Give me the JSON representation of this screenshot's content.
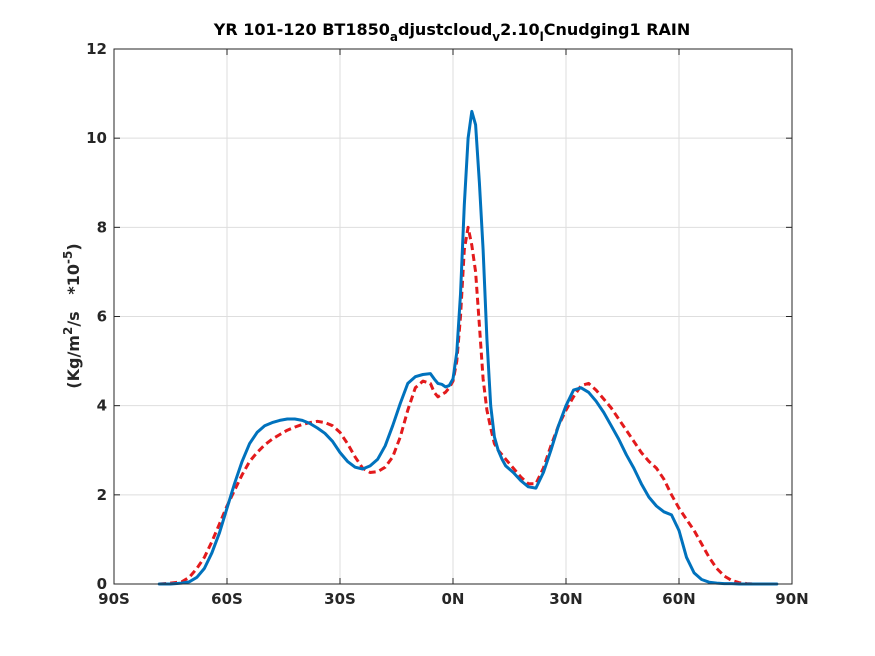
{
  "chart_data": {
    "type": "line",
    "title": {
      "parts": [
        "YR 101-120 BT1850",
        "a",
        "djustcloud",
        "v",
        "2.10",
        "l",
        "Cnudging1 RAIN"
      ]
    },
    "ylabel": {
      "parts": [
        "(Kg/m",
        "2",
        "/s   *10",
        "-5",
        ")"
      ]
    },
    "xlim": [
      -90,
      90
    ],
    "ylim": [
      0,
      12
    ],
    "xticks": [
      -90,
      -60,
      -30,
      0,
      30,
      60,
      90
    ],
    "xtick_labels": [
      "90S",
      "60S",
      "30S",
      "0N",
      "30N",
      "60N",
      "90N"
    ],
    "yticks": [
      0,
      2,
      4,
      6,
      8,
      10,
      12
    ],
    "ytick_labels": [
      "0",
      "2",
      "4",
      "6",
      "8",
      "10",
      "12"
    ],
    "grid": true,
    "series": [
      {
        "color": "#0072BD",
        "style": "solid",
        "x": [
          -78,
          -75,
          -72,
          -70,
          -68,
          -66,
          -64,
          -62,
          -60,
          -58,
          -56,
          -54,
          -52,
          -50,
          -48,
          -46,
          -44,
          -42,
          -40,
          -38,
          -36,
          -34,
          -32,
          -30,
          -28,
          -26,
          -24,
          -22,
          -20,
          -18,
          -16,
          -14,
          -12,
          -10,
          -8,
          -6,
          -5,
          -4,
          -3,
          -2,
          -1,
          0,
          1,
          2,
          3,
          4,
          5,
          6,
          7,
          8,
          9,
          10,
          11,
          12,
          13,
          14,
          16,
          18,
          20,
          22,
          24,
          26,
          28,
          30,
          32,
          34,
          36,
          38,
          40,
          42,
          44,
          46,
          48,
          50,
          52,
          54,
          56,
          58,
          60,
          62,
          64,
          66,
          68,
          70,
          72,
          74,
          76,
          78,
          80,
          82,
          84,
          86
        ],
        "y": [
          0,
          0,
          0.02,
          0.05,
          0.15,
          0.35,
          0.7,
          1.15,
          1.7,
          2.25,
          2.75,
          3.15,
          3.4,
          3.55,
          3.62,
          3.67,
          3.7,
          3.7,
          3.67,
          3.6,
          3.5,
          3.38,
          3.2,
          2.95,
          2.75,
          2.62,
          2.58,
          2.65,
          2.8,
          3.1,
          3.55,
          4.05,
          4.5,
          4.65,
          4.7,
          4.72,
          4.6,
          4.5,
          4.48,
          4.42,
          4.45,
          4.6,
          5.2,
          6.5,
          8.5,
          10.0,
          10.6,
          10.3,
          9.0,
          7.5,
          5.5,
          4.0,
          3.3,
          3.0,
          2.8,
          2.65,
          2.5,
          2.32,
          2.18,
          2.15,
          2.5,
          3.0,
          3.55,
          4.0,
          4.35,
          4.4,
          4.3,
          4.1,
          3.85,
          3.55,
          3.25,
          2.9,
          2.6,
          2.25,
          1.95,
          1.75,
          1.62,
          1.55,
          1.2,
          0.6,
          0.25,
          0.1,
          0.04,
          0.02,
          0.01,
          0.01,
          0,
          0,
          0,
          0,
          0,
          0
        ]
      },
      {
        "color": "#E31A1C",
        "style": "dashed",
        "x": [
          -78,
          -75,
          -72,
          -70,
          -68,
          -66,
          -64,
          -62,
          -60,
          -58,
          -56,
          -54,
          -52,
          -50,
          -48,
          -46,
          -44,
          -42,
          -40,
          -38,
          -36,
          -34,
          -32,
          -30,
          -28,
          -26,
          -24,
          -22,
          -20,
          -18,
          -16,
          -14,
          -12,
          -10,
          -8,
          -6,
          -5,
          -4,
          -3,
          -2,
          -1,
          0,
          1,
          2,
          3,
          4,
          5,
          6,
          7,
          8,
          9,
          10,
          11,
          12,
          13,
          14,
          16,
          18,
          20,
          22,
          24,
          26,
          28,
          30,
          32,
          34,
          36,
          38,
          40,
          42,
          44,
          46,
          48,
          50,
          52,
          54,
          56,
          58,
          60,
          62,
          64,
          66,
          68,
          70,
          72,
          74,
          76,
          78,
          80,
          82,
          84,
          86
        ],
        "y": [
          0,
          0.02,
          0.05,
          0.15,
          0.35,
          0.6,
          0.95,
          1.35,
          1.75,
          2.1,
          2.45,
          2.75,
          2.95,
          3.12,
          3.25,
          3.35,
          3.45,
          3.52,
          3.58,
          3.62,
          3.65,
          3.62,
          3.55,
          3.4,
          3.15,
          2.85,
          2.6,
          2.5,
          2.52,
          2.62,
          2.85,
          3.3,
          3.9,
          4.4,
          4.55,
          4.5,
          4.3,
          4.2,
          4.25,
          4.3,
          4.4,
          4.55,
          5.0,
          6.0,
          7.5,
          8.0,
          7.6,
          7.0,
          5.8,
          4.6,
          3.9,
          3.5,
          3.15,
          3.0,
          2.9,
          2.8,
          2.6,
          2.4,
          2.25,
          2.25,
          2.6,
          3.1,
          3.55,
          3.9,
          4.2,
          4.45,
          4.5,
          4.35,
          4.15,
          3.95,
          3.7,
          3.45,
          3.2,
          2.95,
          2.75,
          2.6,
          2.35,
          2.0,
          1.7,
          1.45,
          1.2,
          0.9,
          0.6,
          0.35,
          0.18,
          0.08,
          0.03,
          0.01,
          0,
          0,
          0,
          0
        ]
      }
    ]
  }
}
